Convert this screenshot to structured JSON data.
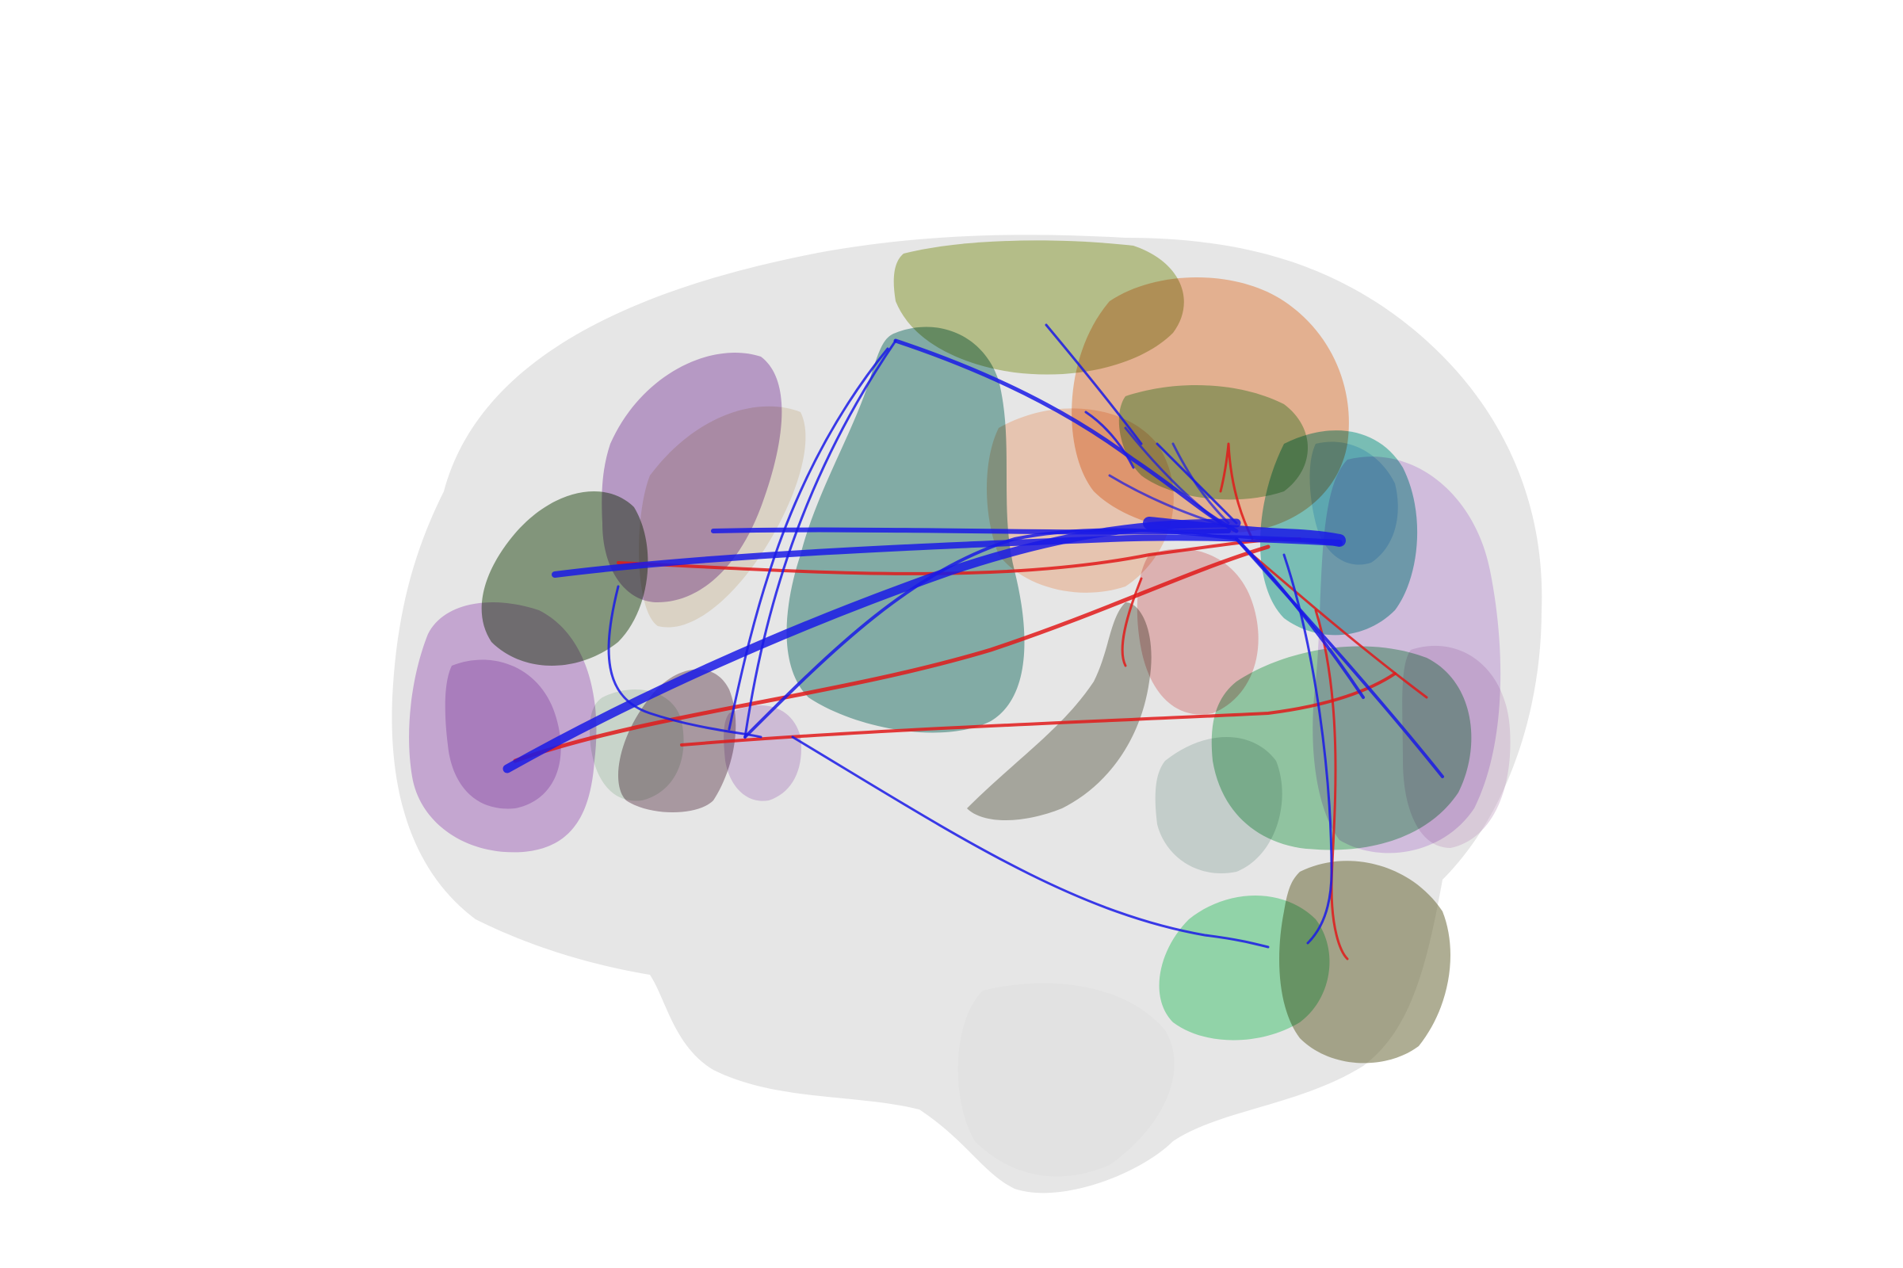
{
  "scene": {
    "background": "#ffffff",
    "brain_color": "#e6e6e6",
    "view": "left-lateral",
    "regions": [
      {
        "name": "frontal-pole-region",
        "color": "#9b59b6"
      },
      {
        "name": "orbitofrontal-region",
        "color": "#8e44ad"
      },
      {
        "name": "prefrontal-green-region",
        "color": "#4a6b3c"
      },
      {
        "name": "dorsolateral-purple-region",
        "color": "#8e5aa8"
      },
      {
        "name": "precentral-olive-region",
        "color": "#8a9a3a"
      },
      {
        "name": "precentral-teal-region",
        "color": "#2f7a6f"
      },
      {
        "name": "postcentral-orange-region",
        "color": "#e07a3a"
      },
      {
        "name": "parietal-green-region",
        "color": "#3c9a3c"
      },
      {
        "name": "parietal-teal-region",
        "color": "#1f9a8a"
      },
      {
        "name": "occipital-lilac-region",
        "color": "#b68ad0"
      },
      {
        "name": "occipital-green-region",
        "color": "#3aa05a"
      },
      {
        "name": "insula-region",
        "color": "#7a7a6a"
      },
      {
        "name": "temporal-mauve-region",
        "color": "#6a4a5a"
      },
      {
        "name": "cerebellar-green-region",
        "color": "#3cbf6a"
      },
      {
        "name": "cerebellar-olive-region",
        "color": "#6b6a3a"
      },
      {
        "name": "inferior-parietal-red-region",
        "color": "#d07070"
      }
    ],
    "tracts": [
      {
        "name": "blue-fiber-bundle",
        "color": "#1a1ae6"
      },
      {
        "name": "red-fiber-bundle",
        "color": "#e01a1a"
      }
    ]
  }
}
